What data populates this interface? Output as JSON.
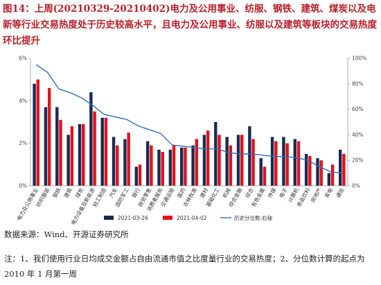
{
  "header": {
    "title": "图14：上周(20210329-20210402)电力及公用事业、纺服、钢铁、建筑、煤炭以及电新等行业交易热度处于历史较高水平，且电力及公用事业、纺服以及建筑等板块的交易热度环比提升"
  },
  "colors": {
    "series1": "#1a2b52",
    "series2": "#e3111b",
    "line": "#2f6db3",
    "title": "#b81f2a"
  },
  "chart_data": {
    "type": "bar",
    "categories": [
      "电力及公用事业",
      "纺织服装",
      "钢铁",
      "建筑",
      "煤炭",
      "电力设备及新能源",
      "轻工制造",
      "汽车",
      "国防军工",
      "银行",
      "商贸零售",
      "消费者服务",
      "交通运输",
      "医药",
      "农林牧渔",
      "建材",
      "基础化工",
      "机械",
      "综合金融",
      "综合",
      "有色金属",
      "传媒",
      "电子",
      "计算机",
      "食品饮料",
      "房地产",
      "家电",
      "通信"
    ],
    "series": [
      {
        "name": "2021-03-26",
        "values": [
          4.8,
          3.7,
          3.7,
          2.4,
          2.9,
          4.4,
          3.2,
          2.3,
          2.2,
          0.9,
          2.1,
          1.7,
          1.7,
          1.8,
          1.9,
          2.4,
          3.0,
          2.3,
          2.4,
          2.8,
          1.3,
          2.3,
          2.3,
          2.2,
          1.5,
          1.3,
          0.6,
          1.7
        ]
      },
      {
        "name": "2021-04-02",
        "values": [
          5.0,
          4.6,
          3.1,
          2.8,
          2.9,
          3.5,
          3.2,
          1.9,
          2.5,
          1.0,
          1.9,
          1.6,
          1.9,
          1.8,
          2.2,
          2.6,
          2.4,
          1.9,
          2.4,
          2.2,
          0.9,
          2.1,
          2.0,
          2.1,
          1.4,
          1.2,
          1.0,
          1.5
        ]
      }
    ],
    "line": {
      "name": "历史分位数:右轴",
      "values": [
        95,
        89,
        76,
        73,
        69,
        63,
        56,
        54,
        52,
        47,
        44,
        41,
        32,
        31,
        30,
        29,
        29,
        26,
        25,
        25,
        24,
        23,
        23,
        22,
        20,
        15,
        11,
        10
      ]
    },
    "yticks_left": [
      "0%",
      "2%",
      "4%",
      "6%"
    ],
    "yticks_right": [
      "0%",
      "20%",
      "40%",
      "60%",
      "80%",
      "100%"
    ],
    "ylim_left": [
      0,
      6
    ],
    "ylim_right": [
      0,
      100
    ],
    "legend_position": "bottom"
  },
  "footer": {
    "source": "数据来源：Wind、开源证券研究所",
    "note": "注：1、我们使用行业日均成交金额占自由流通市值之比度量行业的交易热度；2、分位数计算的起点为 2010 年 1 月第一周"
  }
}
